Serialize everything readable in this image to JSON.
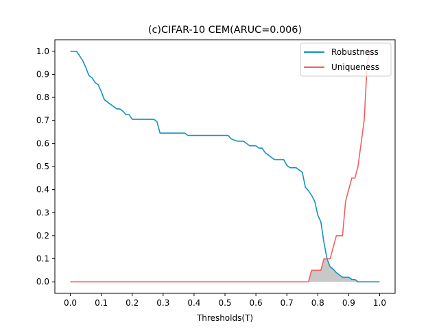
{
  "chart_data": {
    "type": "line",
    "title": "(c)CIFAR-10 CEM(ARUC=0.006)",
    "xlabel": "Thresholds(T)",
    "ylabel": "",
    "xlim": [
      -0.05,
      1.05
    ],
    "ylim": [
      -0.05,
      1.05
    ],
    "xticks": [
      "0.0",
      "0.1",
      "0.2",
      "0.3",
      "0.4",
      "0.5",
      "0.6",
      "0.7",
      "0.8",
      "0.9",
      "1.0"
    ],
    "yticks": [
      "0.0",
      "0.1",
      "0.2",
      "0.3",
      "0.4",
      "0.5",
      "0.6",
      "0.7",
      "0.8",
      "0.9",
      "1.0"
    ],
    "grid": false,
    "legend_position": "top-right",
    "shaded_region": "min(Robustness, Uniqueness)",
    "series": [
      {
        "name": "Robustness",
        "color": "#1192c4",
        "x": [
          0.0,
          0.01,
          0.02,
          0.03,
          0.04,
          0.05,
          0.06,
          0.07,
          0.08,
          0.09,
          0.1,
          0.11,
          0.12,
          0.13,
          0.14,
          0.15,
          0.16,
          0.17,
          0.18,
          0.19,
          0.2,
          0.21,
          0.22,
          0.23,
          0.24,
          0.25,
          0.26,
          0.27,
          0.28,
          0.29,
          0.3,
          0.31,
          0.32,
          0.33,
          0.34,
          0.35,
          0.36,
          0.37,
          0.38,
          0.39,
          0.4,
          0.41,
          0.42,
          0.43,
          0.44,
          0.45,
          0.46,
          0.47,
          0.48,
          0.49,
          0.5,
          0.51,
          0.52,
          0.53,
          0.54,
          0.55,
          0.56,
          0.57,
          0.58,
          0.59,
          0.6,
          0.61,
          0.62,
          0.63,
          0.64,
          0.65,
          0.66,
          0.67,
          0.68,
          0.69,
          0.7,
          0.71,
          0.72,
          0.73,
          0.74,
          0.75,
          0.76,
          0.77,
          0.78,
          0.79,
          0.8,
          0.81,
          0.82,
          0.83,
          0.84,
          0.85,
          0.86,
          0.87,
          0.88,
          0.89,
          0.9,
          0.91,
          0.92,
          0.93,
          0.94,
          0.95,
          0.96,
          0.97,
          0.98,
          0.99,
          1.0
        ],
        "y": [
          1.0,
          1.0,
          1.0,
          0.98,
          0.96,
          0.93,
          0.895,
          0.885,
          0.865,
          0.855,
          0.825,
          0.79,
          0.78,
          0.77,
          0.76,
          0.75,
          0.75,
          0.74,
          0.725,
          0.725,
          0.705,
          0.705,
          0.705,
          0.705,
          0.705,
          0.705,
          0.705,
          0.705,
          0.695,
          0.645,
          0.645,
          0.645,
          0.645,
          0.645,
          0.645,
          0.645,
          0.645,
          0.645,
          0.635,
          0.635,
          0.635,
          0.635,
          0.635,
          0.635,
          0.635,
          0.635,
          0.635,
          0.635,
          0.635,
          0.635,
          0.635,
          0.635,
          0.62,
          0.615,
          0.61,
          0.61,
          0.61,
          0.6,
          0.59,
          0.59,
          0.59,
          0.58,
          0.58,
          0.56,
          0.55,
          0.54,
          0.53,
          0.53,
          0.53,
          0.53,
          0.505,
          0.495,
          0.495,
          0.495,
          0.485,
          0.475,
          0.41,
          0.395,
          0.375,
          0.35,
          0.29,
          0.26,
          0.17,
          0.1,
          0.065,
          0.055,
          0.04,
          0.03,
          0.02,
          0.02,
          0.02,
          0.01,
          0.01,
          0.0,
          0.0,
          0.0,
          0.0,
          0.0,
          0.0,
          0.0,
          0.0
        ]
      },
      {
        "name": "Uniqueness",
        "color": "#f06060",
        "x": [
          0.0,
          0.76,
          0.77,
          0.78,
          0.79,
          0.8,
          0.81,
          0.82,
          0.83,
          0.84,
          0.85,
          0.86,
          0.87,
          0.88,
          0.89,
          0.9,
          0.91,
          0.92,
          0.93,
          0.94,
          0.95,
          0.96,
          0.97
        ],
        "y": [
          0.0,
          0.0,
          0.0,
          0.05,
          0.05,
          0.05,
          0.05,
          0.1,
          0.1,
          0.1,
          0.15,
          0.2,
          0.2,
          0.2,
          0.35,
          0.4,
          0.45,
          0.45,
          0.5,
          0.6,
          0.7,
          0.95,
          1.0
        ]
      }
    ]
  }
}
